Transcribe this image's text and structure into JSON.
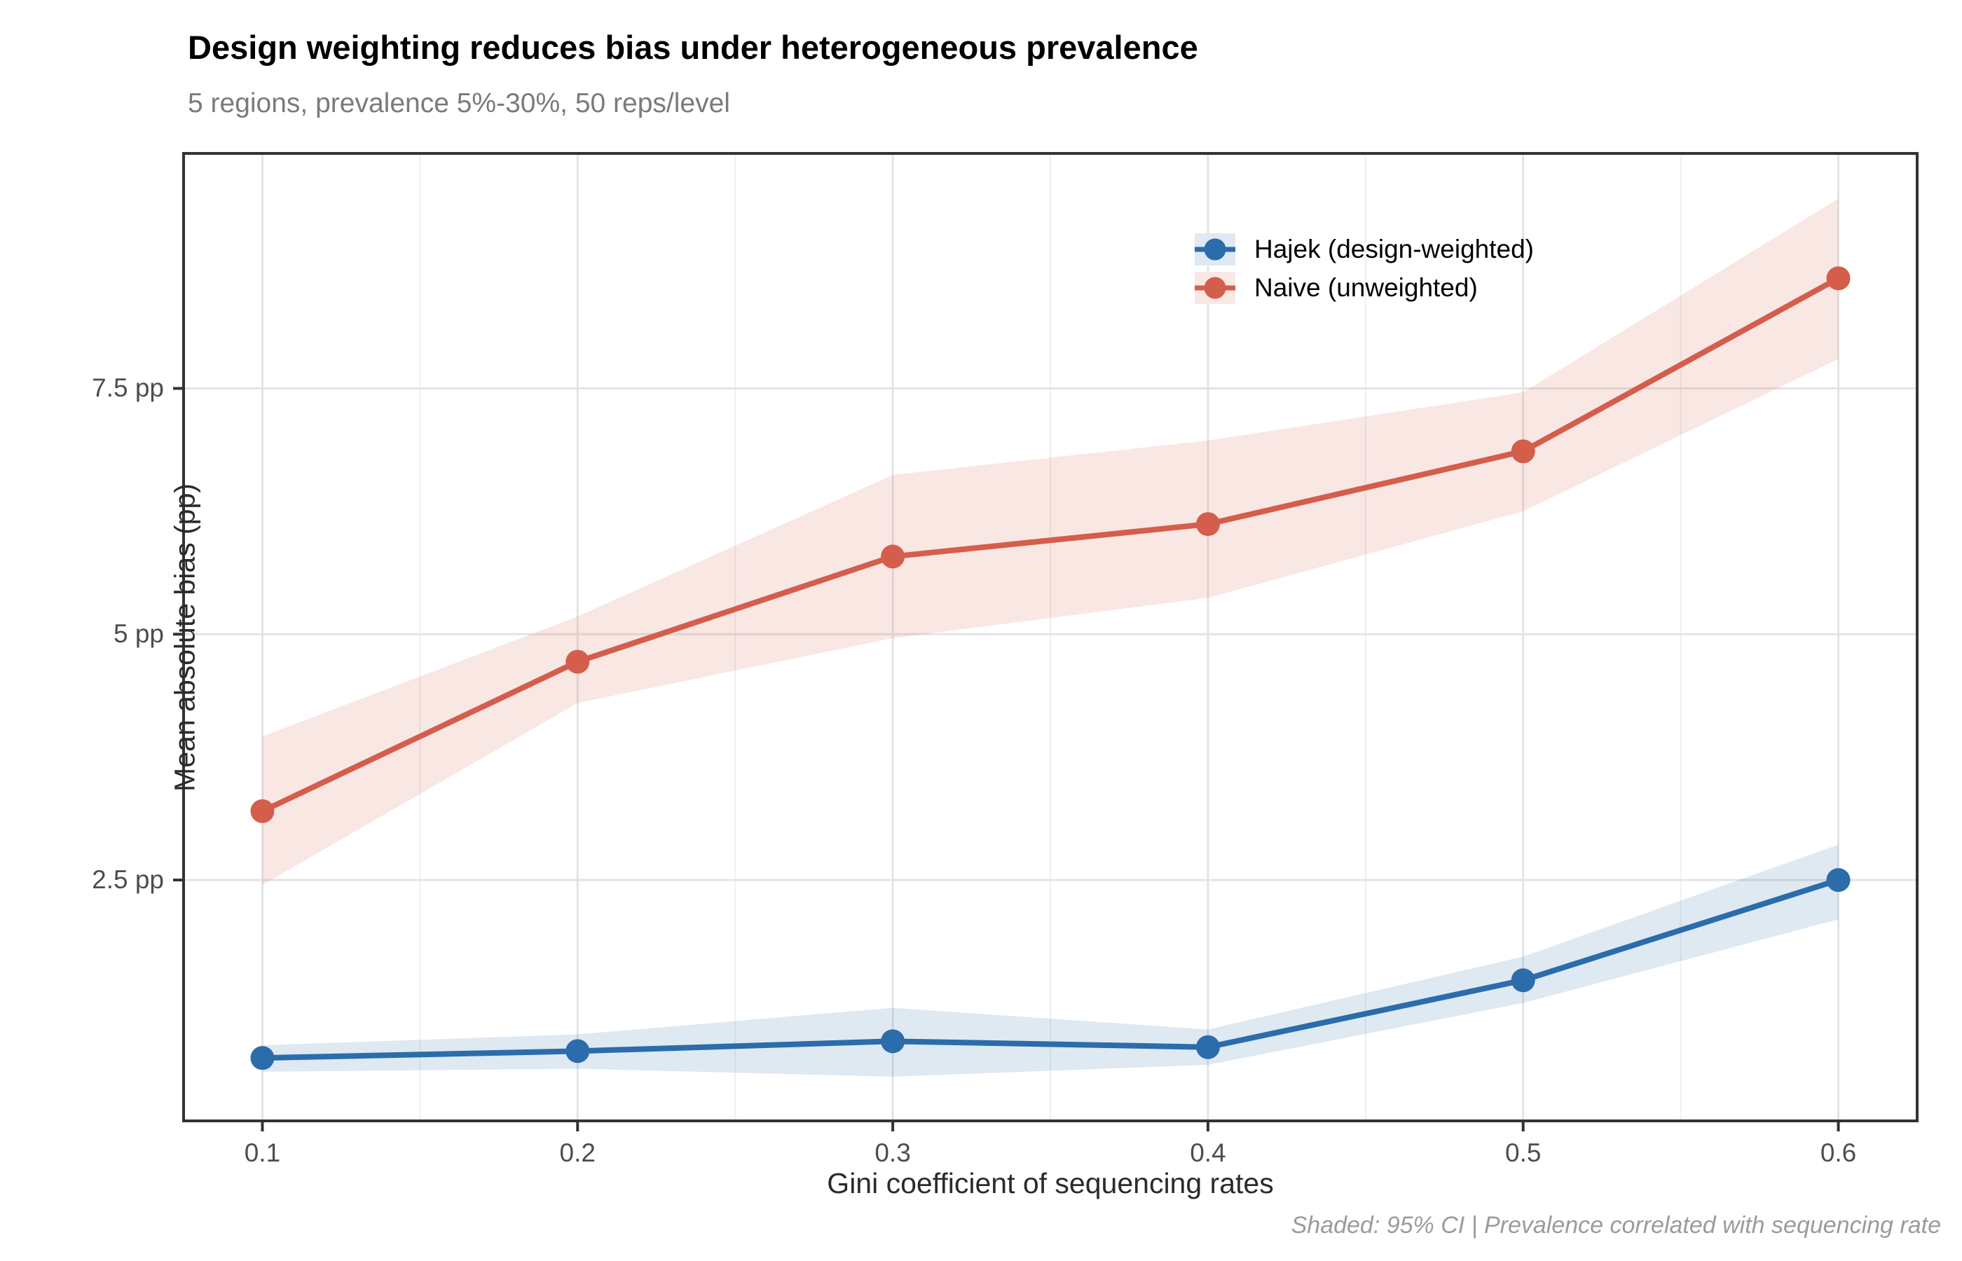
{
  "page": {
    "title": "Design weighting reduces bias under heterogeneous prevalence",
    "subtitle": "5 regions, prevalence 5%-30%, 50 reps/level",
    "caption": "Shaded: 95% CI | Prevalence correlated with sequencing rate"
  },
  "legend": {
    "items": [
      {
        "label": "Hajek (design-weighted)",
        "color": "#2b6cab",
        "fill": "#dfe9f3"
      },
      {
        "label": "Naive (unweighted)",
        "color": "#d45d4c",
        "fill": "#f9e8e4"
      }
    ]
  },
  "chart_data": {
    "type": "line",
    "title": "Design weighting reduces bias under heterogeneous prevalence",
    "subtitle": "5 regions, prevalence 5%-30%, 50 reps/level",
    "xlabel": "Gini coefficient of sequencing rates",
    "ylabel": "Mean absolute bias (pp)",
    "caption": "Shaded: 95% CI | Prevalence correlated with sequencing rate",
    "x": [
      0.1,
      0.2,
      0.3,
      0.4,
      0.5,
      0.6
    ],
    "series": [
      {
        "name": "Hajek (design-weighted)",
        "color": "#2b6cab",
        "ribbon_color": "rgba(43,108,171,0.15)",
        "values": [
          0.69,
          0.76,
          0.86,
          0.8,
          1.48,
          2.5
        ],
        "ci_lower": [
          0.55,
          0.58,
          0.5,
          0.62,
          1.25,
          2.1
        ],
        "ci_upper": [
          0.82,
          0.93,
          1.2,
          0.98,
          1.72,
          2.86
        ]
      },
      {
        "name": "Naive (unweighted)",
        "color": "#d45d4c",
        "ribbon_color": "rgba(212,93,76,0.15)",
        "values": [
          3.2,
          4.72,
          5.79,
          6.12,
          6.86,
          8.62
        ],
        "ci_lower": [
          2.45,
          4.3,
          4.96,
          5.37,
          6.25,
          7.8
        ],
        "ci_upper": [
          3.96,
          5.18,
          6.62,
          6.97,
          7.46,
          9.43
        ]
      }
    ],
    "axes": {
      "xlim": [
        0.075,
        0.625
      ],
      "ylim": [
        0.05,
        9.89
      ],
      "x_ticks": [
        0.1,
        0.2,
        0.3,
        0.4,
        0.5,
        0.6
      ],
      "x_tick_labels": [
        "0.1",
        "0.2",
        "0.3",
        "0.4",
        "0.5",
        "0.6"
      ],
      "x_minor_ticks": [
        0.15,
        0.25,
        0.35,
        0.45,
        0.55
      ],
      "y_ticks": [
        2.5,
        5,
        7.5
      ],
      "y_tick_labels": [
        "2.5 pp",
        "5 pp",
        "7.5 pp"
      ],
      "grid": "major-xy-minor-x",
      "legend_position": "inside-top-right"
    }
  }
}
